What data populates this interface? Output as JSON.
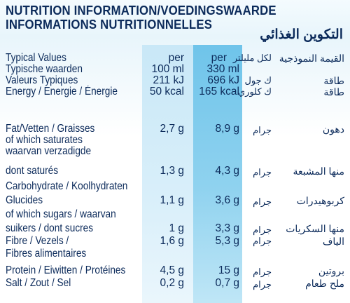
{
  "titles": {
    "line1": "NUTRITION INFORMATION/VOEDINGSWAARDE",
    "line2": "INFORMATIONS NUTRITIONNELLES",
    "arabic": "التكوين الغذائي"
  },
  "header": {
    "col1_per": "per",
    "col1_amount": "100 ml",
    "col2_per": "per",
    "col2_amount": "330 ml",
    "typical_values_lines": [
      "Typical Values",
      "Typische waarden",
      "Valeurs Typiques"
    ],
    "arabic_typical": "القيمة النموذجية",
    "arabic_per_ml": "لكل مليلتر"
  },
  "energy": {
    "label": "Energy / Energie / Énergie",
    "kj_100": "211 kJ",
    "kj_330": "696 kJ",
    "kcal_100": "50 kcal",
    "kcal_330": "165 kcal",
    "ar_kj_unit": "ك جول",
    "ar_kcal_unit": "ك كلوري",
    "ar_energy_1": "طاقة",
    "ar_energy_2": "طاقة"
  },
  "rows": [
    {
      "label_lines": [
        "Fat/Vetten / Graisses"
      ],
      "v100": "2,7 g",
      "v330": "8,9 g",
      "ar_unit": "جرام",
      "ar_name": "دهون"
    },
    {
      "label_lines": [
        "of which saturates",
        "waarvan verzadigde",
        "dont saturés"
      ],
      "v100": "1,3 g",
      "v330": "4,3 g",
      "ar_unit": "جرام",
      "ar_name": "منها المشبعة"
    },
    {
      "label_lines": [
        "Carbohydrate / Koolhydraten",
        "Glucides"
      ],
      "v100": "1,1 g",
      "v330": "3,6 g",
      "ar_unit": "جرام",
      "ar_name": "كربوهيدرات"
    },
    {
      "label_lines": [
        "of which sugars / waarvan",
        "suikers / dont sucres"
      ],
      "v100": "1 g",
      "v330": "3,3 g",
      "ar_unit": "جرام",
      "ar_name": "منها السكريات"
    },
    {
      "label_lines": [
        "Fibre / Vezels /",
        "Fibres alimentaires"
      ],
      "v100": "1,6 g",
      "v330": "5,3 g",
      "ar_unit": "جرام",
      "ar_name": "الياف"
    },
    {
      "label_lines": [
        "Protein / Eiwitten / Protéines"
      ],
      "v100": "4,5 g",
      "v330": "15 g",
      "ar_unit": "جرام",
      "ar_name": "بروتين"
    },
    {
      "label_lines": [
        "Salt / Zout / Sel"
      ],
      "v100": "0,2 g",
      "v330": "0,7 g",
      "ar_unit": "جرام",
      "ar_name": "ملح طعام"
    }
  ]
}
